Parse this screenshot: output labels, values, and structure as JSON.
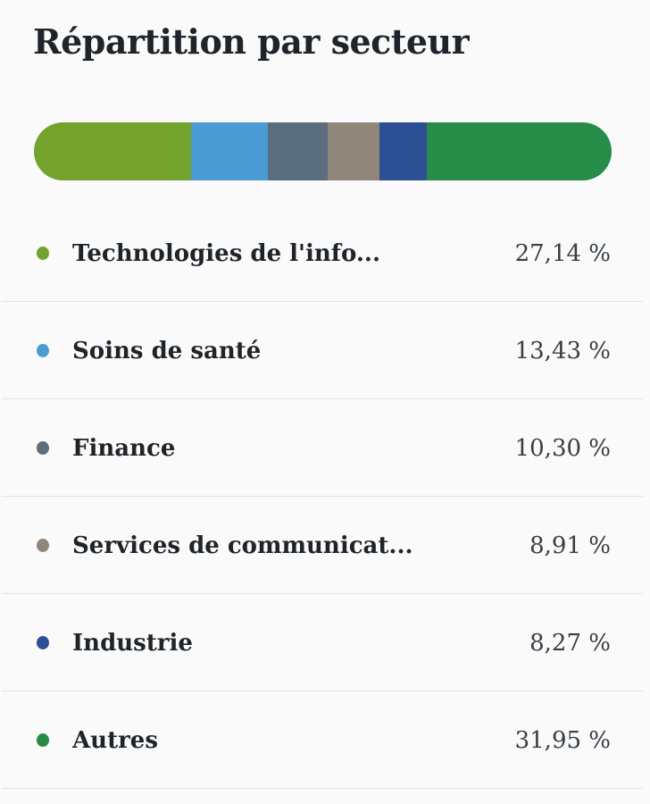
{
  "header": {
    "title": "Répartition par secteur"
  },
  "chart_data": {
    "type": "bar",
    "variant": "horizontal-stacked-pill",
    "title": "Répartition par secteur",
    "unit": "%",
    "total": 100,
    "legend_position": "below",
    "series": [
      {
        "label": "Technologies de l'info...",
        "value": 27.14,
        "display_value": "27,14 %",
        "color": "#74a32d"
      },
      {
        "label": "Soins de santé",
        "value": 13.43,
        "display_value": "13,43 %",
        "color": "#4a9cd3"
      },
      {
        "label": "Finance",
        "value": 10.3,
        "display_value": "10,30 %",
        "color": "#5a6e7d"
      },
      {
        "label": "Services de communicat...",
        "value": 8.91,
        "display_value": "8,91 %",
        "color": "#8f877a"
      },
      {
        "label": "Industrie",
        "value": 8.27,
        "display_value": "8,27 %",
        "color": "#2d5095"
      },
      {
        "label": "Autres",
        "value": 31.95,
        "display_value": "31,95 %",
        "color": "#278c47"
      }
    ]
  }
}
